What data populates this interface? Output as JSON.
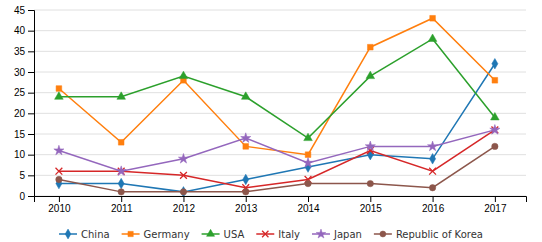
{
  "chart_data": {
    "type": "line",
    "x": [
      2010,
      2011,
      2012,
      2013,
      2014,
      2015,
      2016,
      2017
    ],
    "series": [
      {
        "name": "China",
        "values": [
          3,
          3,
          1,
          4,
          7,
          10,
          9,
          32
        ],
        "marker": "diamond"
      },
      {
        "name": "Germany",
        "values": [
          26,
          13,
          28,
          12,
          10,
          36,
          43,
          28
        ],
        "marker": "square"
      },
      {
        "name": "USA",
        "values": [
          24,
          24,
          29,
          24,
          14,
          29,
          38,
          19
        ],
        "marker": "triangle"
      },
      {
        "name": "Italy",
        "values": [
          6,
          6,
          5,
          2,
          4,
          11,
          6,
          16
        ],
        "marker": "x"
      },
      {
        "name": "Japan",
        "values": [
          11,
          6,
          9,
          14,
          8,
          12,
          12,
          16
        ],
        "marker": "star"
      },
      {
        "name": "Republic of Korea",
        "values": [
          4,
          1,
          1,
          1,
          3,
          3,
          2,
          12
        ],
        "marker": "circle"
      }
    ],
    "xlim": [
      2009.6,
      2017.5
    ],
    "xticks": [
      2010,
      2011,
      2012,
      2013,
      2014,
      2015,
      2016,
      2017
    ],
    "ylim": [
      0,
      45
    ],
    "yticks": [
      0,
      5,
      10,
      15,
      20,
      25,
      30,
      35,
      40,
      45
    ],
    "grid": true,
    "legend": "bottom"
  }
}
